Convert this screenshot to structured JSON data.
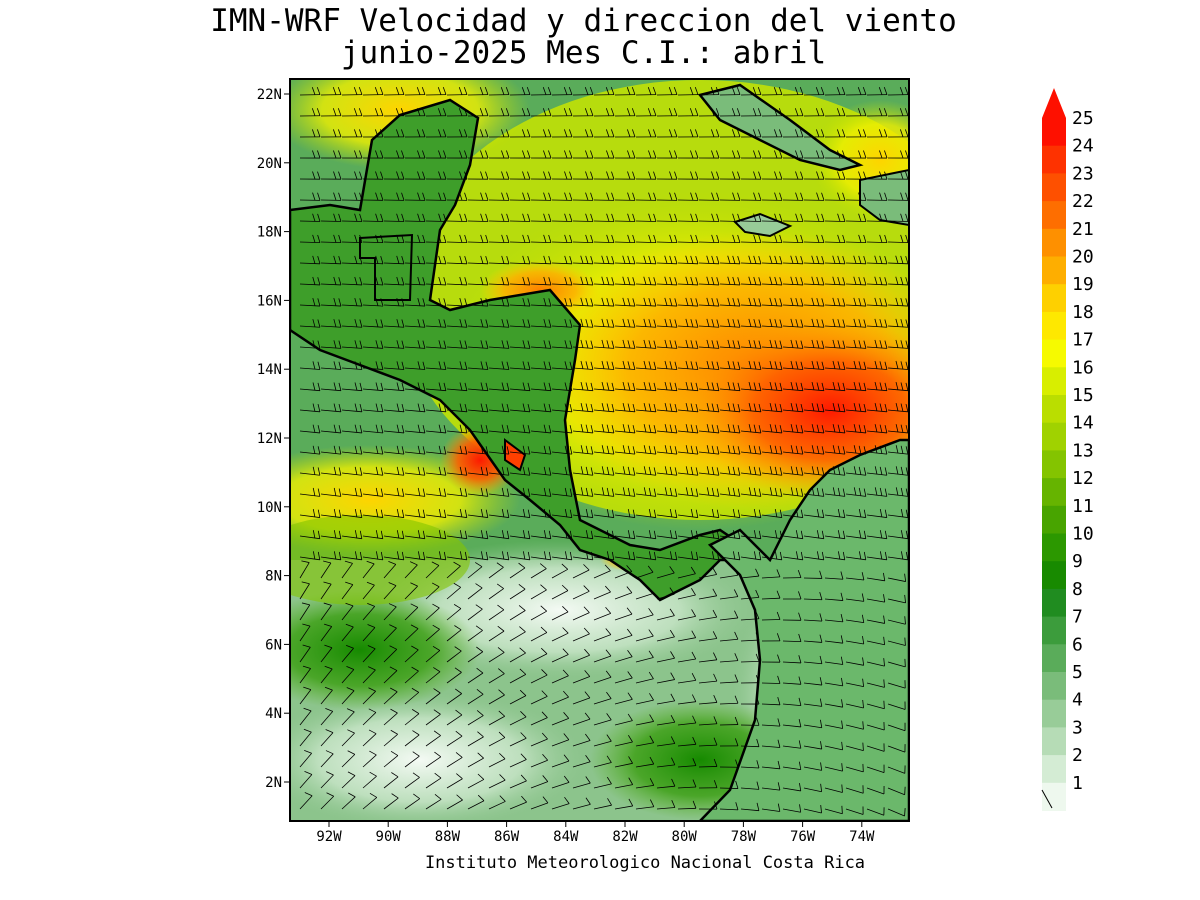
{
  "title": {
    "line1": "IMN-WRF Velocidad y direccion del viento",
    "line2": "junio-2025 Mes C.I.: abril"
  },
  "credit": "Instituto Meteorologico Nacional Costa Rica",
  "lat_ticks": [
    "22N",
    "20N",
    "18N",
    "16N",
    "14N",
    "12N",
    "10N",
    "8N",
    "6N",
    "4N",
    "2N"
  ],
  "lon_ticks": [
    "92W",
    "90W",
    "88W",
    "86W",
    "84W",
    "82W",
    "80W",
    "78W",
    "76W",
    "74W"
  ],
  "legend": {
    "levels": [
      "25",
      "24",
      "23",
      "22",
      "21",
      "20",
      "19",
      "18",
      "17",
      "16",
      "15",
      "14",
      "13",
      "12",
      "11",
      "10",
      "9",
      "8",
      "7",
      "6",
      "5",
      "4",
      "3",
      "2",
      "1"
    ],
    "colors": [
      "#fe1000",
      "#fe3200",
      "#fe5000",
      "#fe6e00",
      "#fe9000",
      "#feae00",
      "#fed000",
      "#fee800",
      "#f6fa00",
      "#d8ee00",
      "#bade00",
      "#a0d200",
      "#84c400",
      "#66b400",
      "#48a400",
      "#2c9800",
      "#188a00",
      "#208c20",
      "#3c9c3c",
      "#5aac5a",
      "#7abc7a",
      "#98cc98",
      "#b6dcb6",
      "#d4ecd4",
      "#eef8ee"
    ]
  },
  "colors": {
    "coast": "#000000",
    "land_green": "#2c9800",
    "ocean_light": "#c8e6c8"
  }
}
